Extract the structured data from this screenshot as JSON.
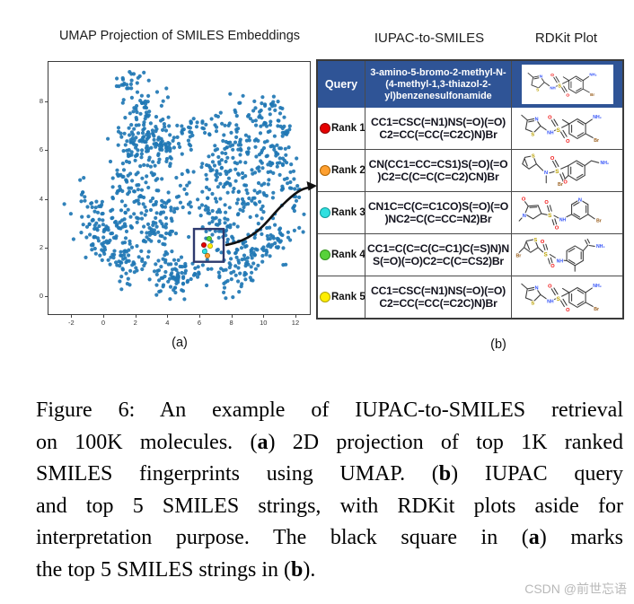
{
  "accent": {
    "header_bg": "#2f5496",
    "table_border": "#3a3a3a"
  },
  "molecule_atom_colors": {
    "N": "#3050f8",
    "O": "#f00d0d",
    "S": "#b9a000",
    "Br": "#9a5f1e"
  },
  "panels": {
    "a": "(a)",
    "b": "(b)"
  },
  "column_heads": {
    "smiles": "IUPAC-to-SMILES",
    "rdkit": "RDKit Plot"
  },
  "chart_data": {
    "type": "scatter",
    "title": "UMAP Projection of SMILES Embeddings",
    "xlabel": "",
    "ylabel": "",
    "xlim": [
      -3.6,
      12.95
    ],
    "ylim": [
      -0.77,
      9.67
    ],
    "x_ticks": [
      -2,
      0,
      2,
      4,
      6,
      8,
      10,
      12
    ],
    "y_ticks": [
      0,
      2,
      4,
      6,
      8
    ],
    "grid": false,
    "legend": "none",
    "n_points": 1156,
    "point_color": "#1f77b4",
    "seed": 20240613,
    "clusters": [
      [
        1.7,
        8.7,
        0.45,
        0.45,
        22
      ],
      [
        2.3,
        7.9,
        0.5,
        0.4,
        25
      ],
      [
        3.0,
        6.9,
        0.7,
        0.55,
        60
      ],
      [
        2.2,
        6.1,
        0.7,
        0.5,
        50
      ],
      [
        3.6,
        6.1,
        0.5,
        0.45,
        40
      ],
      [
        1.3,
        4.7,
        0.5,
        0.65,
        32
      ],
      [
        -0.8,
        3.3,
        0.55,
        0.8,
        42
      ],
      [
        -0.2,
        2.2,
        0.5,
        0.6,
        30
      ],
      [
        0.9,
        2.7,
        0.65,
        0.75,
        65
      ],
      [
        1.8,
        1.5,
        0.55,
        0.5,
        38
      ],
      [
        3.2,
        2.9,
        0.6,
        0.7,
        42
      ],
      [
        2.9,
        4.4,
        0.65,
        0.6,
        42
      ],
      [
        3.9,
        1.0,
        0.65,
        0.45,
        42
      ],
      [
        4.8,
        0.8,
        0.45,
        0.5,
        26
      ],
      [
        4.4,
        3.3,
        0.5,
        0.6,
        26
      ],
      [
        5.9,
        7.1,
        0.9,
        0.22,
        24
      ],
      [
        4.9,
        6.6,
        0.4,
        0.4,
        14
      ],
      [
        5.4,
        4.8,
        0.4,
        0.55,
        16
      ],
      [
        5.7,
        1.0,
        0.4,
        0.4,
        16
      ],
      [
        6.7,
        3.3,
        0.5,
        0.6,
        30
      ],
      [
        7.4,
        5.4,
        0.7,
        0.75,
        58
      ],
      [
        8.7,
        6.1,
        0.75,
        0.65,
        62
      ],
      [
        9.9,
        7.6,
        0.75,
        0.45,
        42
      ],
      [
        10.7,
        5.7,
        0.65,
        0.55,
        46
      ],
      [
        11.9,
        4.2,
        0.45,
        0.85,
        34
      ],
      [
        9.1,
        4.1,
        0.75,
        0.6,
        52
      ],
      [
        7.7,
        2.3,
        0.65,
        0.75,
        52
      ],
      [
        9.4,
        1.8,
        0.75,
        0.55,
        52
      ],
      [
        10.9,
        2.4,
        0.55,
        0.45,
        32
      ],
      [
        8.4,
        0.9,
        0.55,
        0.35,
        26
      ],
      [
        11.3,
        6.8,
        0.4,
        0.4,
        18
      ]
    ],
    "highlight_square": {
      "x_min": 5.72,
      "x_max": 7.57,
      "y_min": 1.45,
      "y_max": 2.8,
      "color": "#2e3a6e"
    },
    "highlight_points": [
      {
        "rank": 1,
        "x": 6.34,
        "y": 2.14,
        "color": "#e60000",
        "stroke": "#8f0000"
      },
      {
        "rank": 2,
        "x": 6.56,
        "y": 1.7,
        "color": "#ffa030",
        "stroke": "#b06300"
      },
      {
        "rank": 3,
        "x": 6.39,
        "y": 1.88,
        "color": "#30e0e0",
        "stroke": "#0f9a9a"
      },
      {
        "rank": 4,
        "x": 6.67,
        "y": 2.4,
        "color": "#58d23a",
        "stroke": "#2f8f18"
      },
      {
        "rank": 5,
        "x": 6.73,
        "y": 2.1,
        "color": "#ffee00",
        "stroke": "#b0a300"
      }
    ]
  },
  "table": {
    "query": {
      "label": "Query",
      "lines": [
        "3-amino-5-bromo-2-methyl-N-",
        "(4-methyl-1,3-thiazol-2-",
        "yl)benzenesulfonamide"
      ],
      "mol": "A"
    },
    "ranks": [
      {
        "label": "Rank 1",
        "dot": "#e60000",
        "dot_stroke": "#8f0000",
        "smiles_lines": [
          "CC1=CSC(=N1)NS(=O)(=O)",
          "C2=CC(=CC(=C2C)N)Br"
        ],
        "mol": "A"
      },
      {
        "label": "Rank 2",
        "dot": "#ffa030",
        "dot_stroke": "#b06300",
        "smiles_lines": [
          "CN(CC1=CC=CS1)S(=O)(=O",
          ")C2=C(C=C(C=C2)CN)Br"
        ],
        "mol": "B"
      },
      {
        "label": "Rank 3",
        "dot": "#30e0e0",
        "dot_stroke": "#0f9a9a",
        "smiles_lines": [
          "CN1C=C(C=C1CO)S(=O)(=O",
          ")NC2=C(C=CC=N2)Br"
        ],
        "mol": "C"
      },
      {
        "label": "Rank 4",
        "dot": "#58d23a",
        "dot_stroke": "#2f8f18",
        "smiles_lines": [
          "CC1=C(C=C(C=C1)C(=S)N)N",
          "S(=O)(=O)C2=C(C=CS2)Br"
        ],
        "mol": "D"
      },
      {
        "label": "Rank 5",
        "dot": "#ffee00",
        "dot_stroke": "#b0a300",
        "smiles_lines": [
          "CC1=CSC(=N1)NS(=O)(=O)",
          "C2=CC(=CC(=C2C)N)Br"
        ],
        "mol": "A"
      }
    ]
  },
  "caption": {
    "lines": [
      [
        {
          "t": "Figure 6: An example of IUPAC-to-SMILES retrieval"
        }
      ],
      [
        {
          "t": "on 100K molecules. ("
        },
        {
          "t": "a",
          "b": true
        },
        {
          "t": ") 2D projection of top 1K ranked"
        }
      ],
      [
        {
          "t": "SMILES fingerprints using UMAP. ("
        },
        {
          "t": "b",
          "b": true
        },
        {
          "t": ") IUPAC query"
        }
      ],
      [
        {
          "t": "and top 5 SMILES strings, with RDKit plots aside for"
        }
      ],
      [
        {
          "t": "interpretation purpose. The black square in ("
        },
        {
          "t": "a",
          "b": true
        },
        {
          "t": ") marks"
        }
      ],
      [
        {
          "t": "the top 5 SMILES strings in ("
        },
        {
          "t": "b",
          "b": true
        },
        {
          "t": ")."
        }
      ]
    ]
  },
  "watermark": "CSDN @前世忘语"
}
